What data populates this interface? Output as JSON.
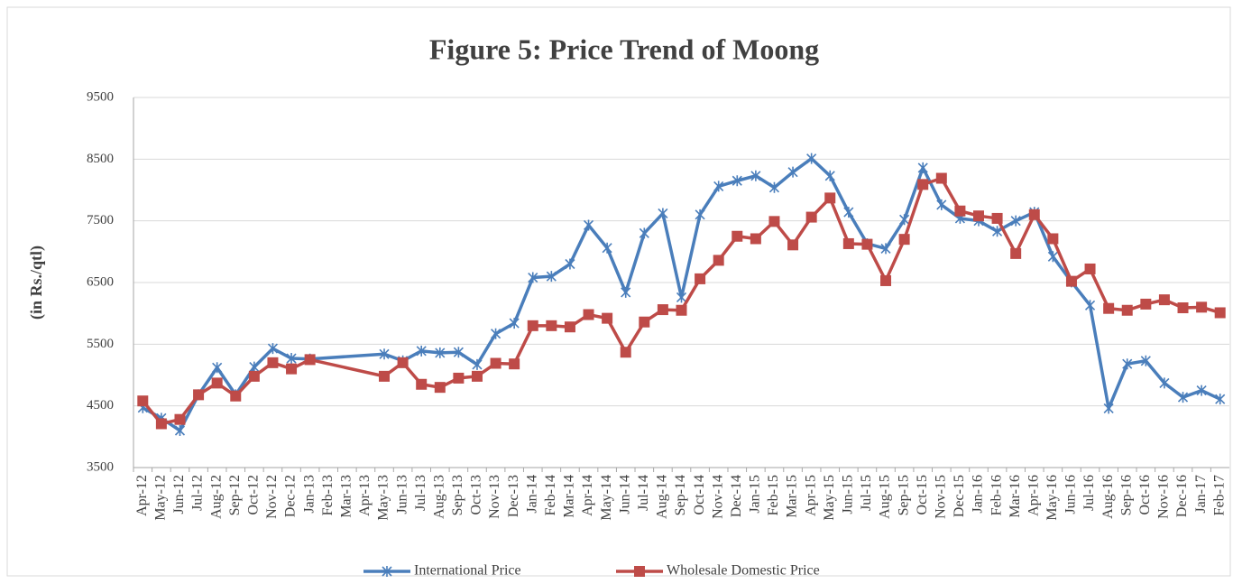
{
  "chart_data": {
    "type": "line",
    "title": "Figure 5: Price Trend of Moong",
    "y_label": "(in Rs./qtl)",
    "categories": [
      "Apr-12",
      "May-12",
      "Jun-12",
      "Jul-12",
      "Aug-12",
      "Sep-12",
      "Oct-12",
      "Nov-12",
      "Dec-12",
      "Jan-13",
      "Feb-13",
      "Mar-13",
      "Apr-13",
      "May-13",
      "Jun-13",
      "Jul-13",
      "Aug-13",
      "Sep-13",
      "Oct-13",
      "Nov-13",
      "Dec-13",
      "Jan-14",
      "Feb-14",
      "Mar-14",
      "Apr-14",
      "May-14",
      "Jun-14",
      "Jul-14",
      "Aug-14",
      "Sep-14",
      "Oct-14",
      "Nov-14",
      "Dec-14",
      "Jan-15",
      "Feb-15",
      "Mar-15",
      "Apr-15",
      "May-15",
      "Jun-15",
      "Jul-15",
      "Aug-15",
      "Sep-15",
      "Oct-15",
      "Nov-15",
      "Dec-15",
      "Jan-16",
      "Feb-16",
      "Mar-16",
      "Apr-16",
      "May-16",
      "Jun-16",
      "Jul-16",
      "Aug-16",
      "Sep-16",
      "Oct-16",
      "Nov-16",
      "Dec-16",
      "Jan-17",
      "Feb-17"
    ],
    "series": [
      {
        "name": "International Price",
        "color": "#4a7ebb",
        "marker": "star",
        "values": [
          4470,
          4300,
          4100,
          4680,
          5120,
          4680,
          5130,
          5430,
          5270,
          5260,
          null,
          null,
          null,
          5340,
          5230,
          5390,
          5360,
          5370,
          5170,
          5670,
          5840,
          6580,
          6600,
          6800,
          7430,
          7060,
          6340,
          7300,
          7620,
          6260,
          7600,
          8060,
          8150,
          8230,
          8040,
          8290,
          8510,
          8230,
          7640,
          7130,
          7050,
          7520,
          8360,
          7760,
          7540,
          7500,
          7330,
          7500,
          7640,
          6920,
          6510,
          6130,
          4460,
          5180,
          5230,
          4870,
          4640,
          4750,
          4610
        ]
      },
      {
        "name": "Wholesale Domestic Price",
        "color": "#be4b48",
        "marker": "square",
        "values": [
          4580,
          4210,
          4280,
          4680,
          4870,
          4660,
          4980,
          5200,
          5100,
          5250,
          null,
          null,
          null,
          4980,
          5200,
          4850,
          4800,
          4950,
          4980,
          5190,
          5180,
          5800,
          5800,
          5780,
          5980,
          5920,
          5370,
          5860,
          6060,
          6050,
          6560,
          6860,
          7250,
          7210,
          7490,
          7110,
          7560,
          7870,
          7130,
          7120,
          6530,
          7200,
          8090,
          8190,
          7660,
          7580,
          7540,
          6970,
          7600,
          7210,
          6520,
          6720,
          6080,
          6050,
          6150,
          6220,
          6090,
          6100,
          6010
        ]
      }
    ],
    "ylim": [
      3500,
      9500
    ],
    "yticks": [
      3500,
      4500,
      5500,
      6500,
      7500,
      8500,
      9500
    ],
    "grid": true,
    "span_gaps": true,
    "legend": "bottom"
  }
}
